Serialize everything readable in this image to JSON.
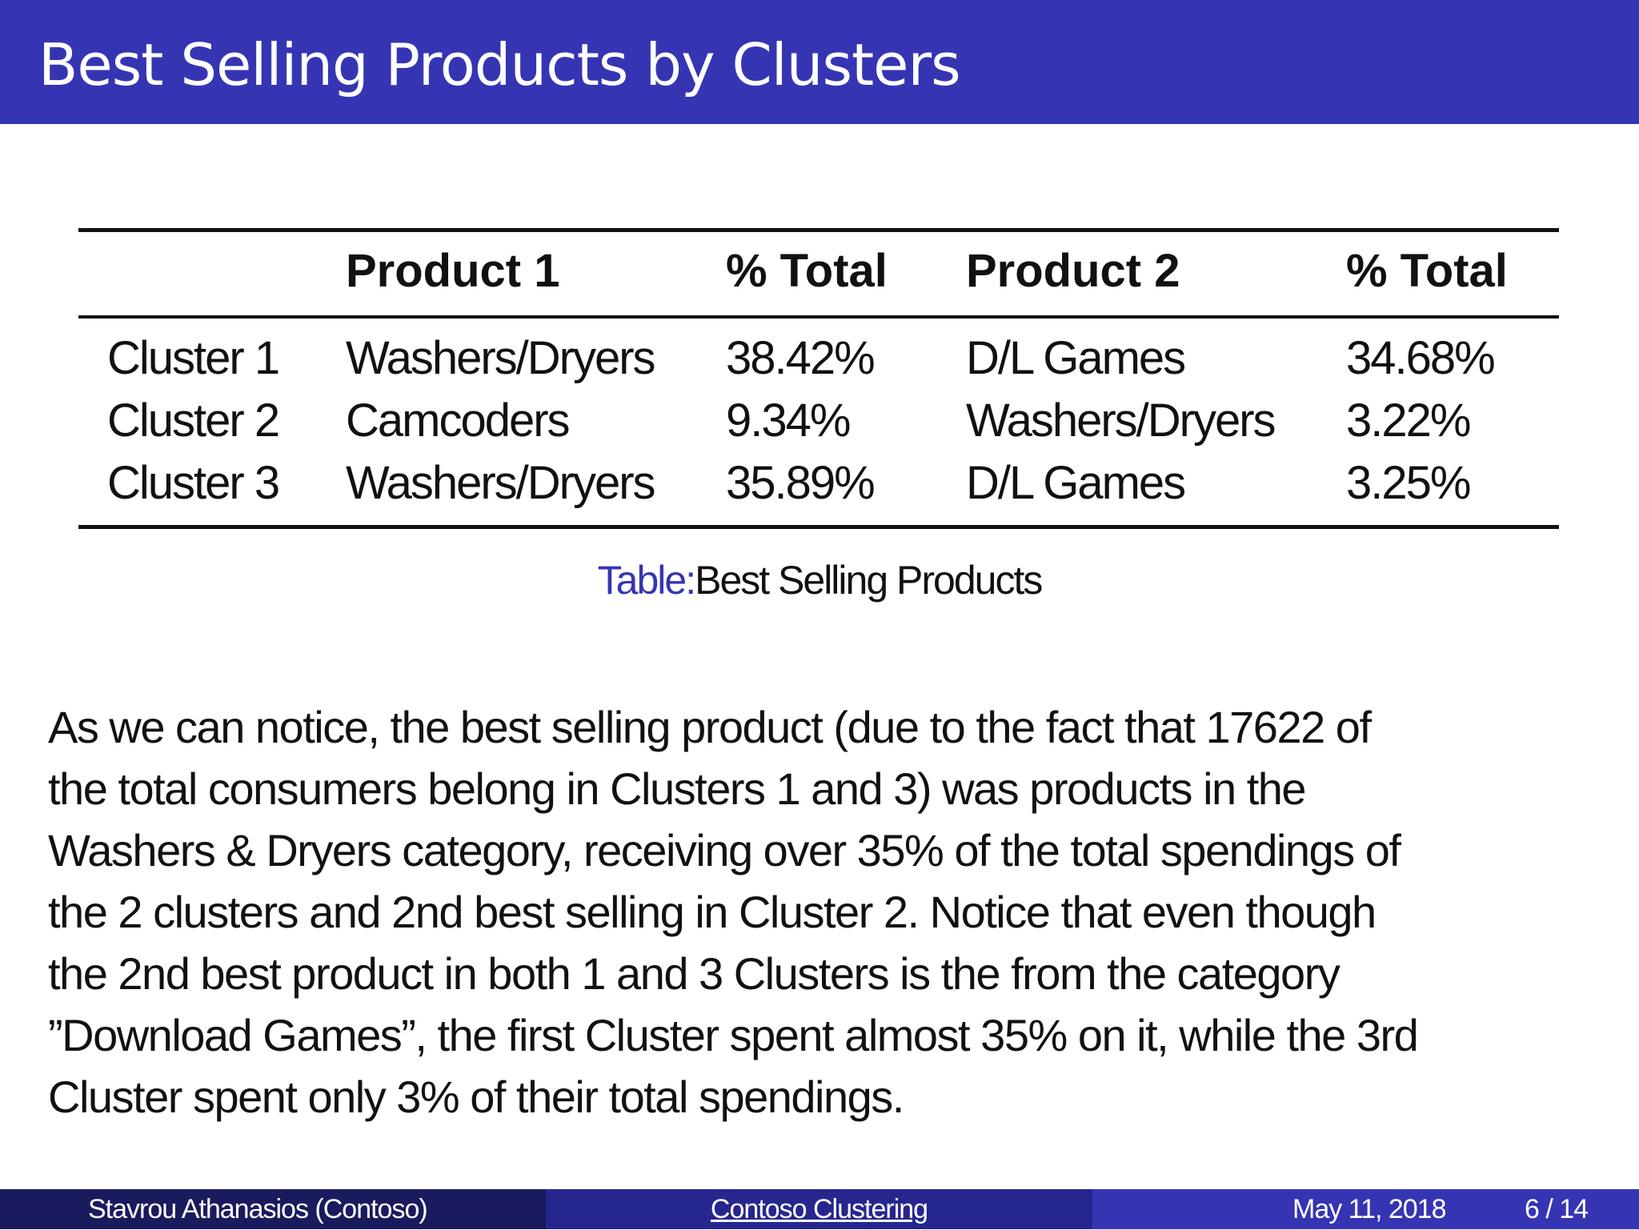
{
  "slide": {
    "title": "Best Selling Products by Clusters"
  },
  "table": {
    "headers": [
      "",
      "Product 1",
      "% Total",
      "Product 2",
      "% Total"
    ],
    "rows": [
      [
        "Cluster 1",
        "Washers/Dryers",
        "38.42%",
        "D/L  Games",
        "34.68%"
      ],
      [
        "Cluster 2",
        "Camcoders",
        "9.34%",
        "Washers/Dryers",
        "3.22%"
      ],
      [
        "Cluster 3",
        "Washers/Dryers",
        "35.89%",
        "D/L  Games",
        "3.25%"
      ]
    ],
    "caption_label": "Table:",
    "caption_text": "Best Selling Products"
  },
  "paragraph": {
    "lines": [
      "As we can notice, the best selling product (due to the fact that 17622 of",
      "the total consumers belong in Clusters 1 and 3) was products in the",
      "Washers &  Dryers category, receiving over 35% of the total spendings of",
      "the 2 clusters and 2nd best selling in Cluster 2. Notice that even though",
      "the 2nd best product in both 1 and 3 Clusters is the from the category",
      "”Download Games”, the first Cluster spent almost 35% on it, while the  3rd",
      "Cluster spent only 3% of their total spendings."
    ]
  },
  "footer": {
    "author": "Stavrou Athanasios  (Contoso)",
    "short_title": "Contoso Clustering",
    "date": "May 11, 2018",
    "page": "6 / 14"
  },
  "colors": {
    "accent": "#3535b3",
    "footer_dark": "#1a1a5e",
    "footer_mid": "#26268f",
    "text": "#111111"
  }
}
